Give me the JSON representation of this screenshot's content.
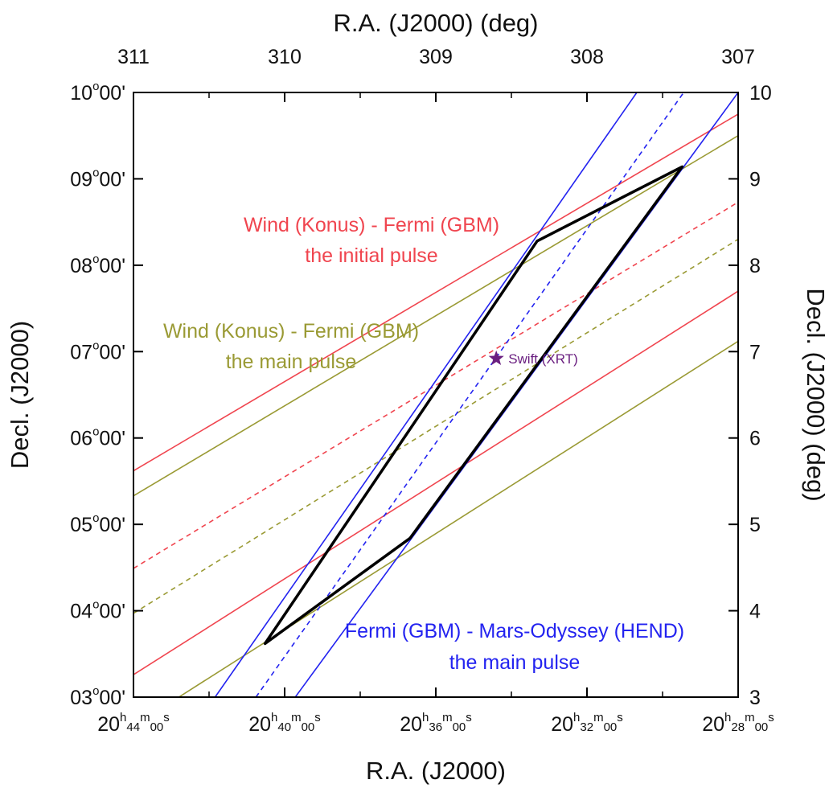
{
  "chart_data": {
    "type": "line",
    "xlabel": "R.A. (J2000)",
    "x2label": "R.A. (J2000) (deg)",
    "ylabel": "Decl. (J2000)",
    "y2label": "Decl. (J2000) (deg)",
    "xlim": [
      311,
      307
    ],
    "ylim": [
      3,
      10
    ],
    "x_reversed": true,
    "grid": false,
    "bottom_ticks": [
      {
        "value": 311,
        "h": "20",
        "m": "44",
        "s": "00"
      },
      {
        "value": 310,
        "h": "20",
        "m": "40",
        "s": "00"
      },
      {
        "value": 309,
        "h": "20",
        "m": "36",
        "s": "00"
      },
      {
        "value": 308,
        "h": "20",
        "m": "32",
        "s": "00"
      },
      {
        "value": 307,
        "h": "20",
        "m": "28",
        "s": "00"
      }
    ],
    "top_ticks": [
      {
        "value": 311,
        "label": "311"
      },
      {
        "value": 310,
        "label": "310"
      },
      {
        "value": 309,
        "label": "309"
      },
      {
        "value": 308,
        "label": "308"
      },
      {
        "value": 307,
        "label": "307"
      }
    ],
    "left_ticks": [
      {
        "value": 10,
        "d": "10",
        "m": "00'"
      },
      {
        "value": 9,
        "d": "09",
        "m": "00'"
      },
      {
        "value": 8,
        "d": "08",
        "m": "00'"
      },
      {
        "value": 7,
        "d": "07",
        "m": "00'"
      },
      {
        "value": 6,
        "d": "06",
        "m": "00'"
      },
      {
        "value": 5,
        "d": "05",
        "m": "00'"
      },
      {
        "value": 4,
        "d": "04",
        "m": "00'"
      },
      {
        "value": 3,
        "d": "03",
        "m": "00'"
      }
    ],
    "right_ticks": [
      {
        "value": 10,
        "label": "10"
      },
      {
        "value": 9,
        "label": "9"
      },
      {
        "value": 8,
        "label": "8"
      },
      {
        "value": 7,
        "label": "7"
      },
      {
        "value": 6,
        "label": "6"
      },
      {
        "value": 5,
        "label": "5"
      },
      {
        "value": 4,
        "label": "4"
      },
      {
        "value": 3,
        "label": "3"
      }
    ],
    "series": [
      {
        "group": "konus-gbm-initial",
        "color": "#f0454f",
        "style": "solid",
        "points": [
          [
            311,
            5.62
          ],
          [
            307,
            9.75
          ]
        ]
      },
      {
        "group": "konus-gbm-initial",
        "color": "#f0454f",
        "style": "dashed",
        "points": [
          [
            311,
            4.49
          ],
          [
            307,
            8.73
          ]
        ]
      },
      {
        "group": "konus-gbm-initial",
        "color": "#f0454f",
        "style": "solid",
        "points": [
          [
            311,
            3.26
          ],
          [
            307,
            7.7
          ]
        ]
      },
      {
        "group": "konus-gbm-main",
        "color": "#9a9a34",
        "style": "solid",
        "points": [
          [
            311,
            5.33
          ],
          [
            307,
            9.5
          ]
        ]
      },
      {
        "group": "konus-gbm-main",
        "color": "#9a9a34",
        "style": "dashed",
        "points": [
          [
            311,
            3.97
          ],
          [
            307,
            8.3
          ]
        ]
      },
      {
        "group": "konus-gbm-main",
        "color": "#9a9a34",
        "style": "solid",
        "points": [
          [
            310.7,
            3.0
          ],
          [
            307,
            7.12
          ]
        ]
      },
      {
        "group": "gbm-hend-main",
        "color": "#2323f0",
        "style": "solid",
        "points": [
          [
            310.46,
            3.0
          ],
          [
            307.67,
            10.0
          ]
        ]
      },
      {
        "group": "gbm-hend-main",
        "color": "#2323f0",
        "style": "dashed",
        "points": [
          [
            310.19,
            3.0
          ],
          [
            307.36,
            10.0
          ]
        ]
      },
      {
        "group": "gbm-hend-main",
        "color": "#2323f0",
        "style": "solid",
        "points": [
          [
            309.93,
            3.0
          ],
          [
            307.0,
            10.0
          ]
        ]
      }
    ],
    "error_box": {
      "color": "#000000",
      "vertices": [
        [
          310.13,
          3.62
        ],
        [
          308.33,
          8.28
        ],
        [
          307.37,
          9.14
        ],
        [
          309.17,
          4.84
        ]
      ]
    },
    "marker": {
      "label": "Swift (XRT)",
      "x": 308.6,
      "y": 6.92,
      "color": "#6a1f80",
      "symbol": "star"
    },
    "annotations": [
      {
        "line1": "Wind (Konus) - Fermi (GBM)",
        "line2": "the initial pulse",
        "color": "#f0454f"
      },
      {
        "line1": "Wind (Konus) - Fermi (GBM)",
        "line2": "the main pulse",
        "color": "#9a9a34"
      },
      {
        "line1": "Fermi (GBM) - Mars-Odyssey (HEND)",
        "line2": "the main pulse",
        "color": "#2323f0"
      }
    ]
  }
}
